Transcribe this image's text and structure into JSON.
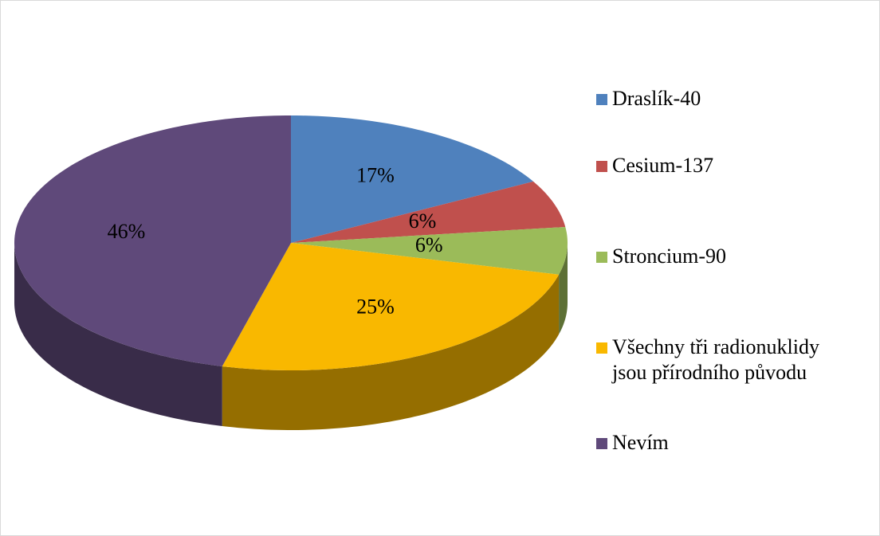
{
  "chart_data": {
    "type": "pie",
    "categories": [
      "Draslík-40",
      "Cesium-137",
      "Stroncium-90",
      "Všechny tři radionuklidy jsou přírodního původu",
      "Nevím"
    ],
    "values": [
      17,
      6,
      6,
      25,
      46
    ],
    "value_labels": [
      "17%",
      "6%",
      "6%",
      "25%",
      "46%"
    ],
    "colors": [
      "#4f81bd",
      "#c0504d",
      "#9bbb59",
      "#f9b800",
      "#5f497a"
    ],
    "legend": "right"
  }
}
